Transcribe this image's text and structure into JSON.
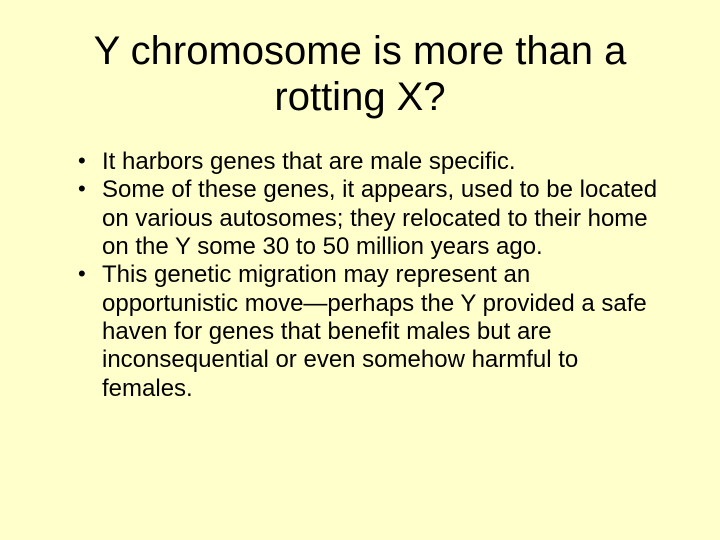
{
  "slide": {
    "background_color": "#ffffcc",
    "title": {
      "text": "Y chromosome is more than a rotting X?",
      "fontsize": 40,
      "color": "#000000",
      "font_family": "Arial"
    },
    "bullets": {
      "fontsize": 24,
      "color": "#000000",
      "font_family": "Arial",
      "items": [
        "It harbors genes that are male specific.",
        "Some of these genes, it appears, used to be located on various autosomes; they relocated to their home on the Y some 30 to 50 million years ago.",
        "This genetic migration may represent an opportunistic move—perhaps the Y provided a safe haven for genes that benefit males but are inconsequential or even somehow harmful to females."
      ]
    }
  }
}
